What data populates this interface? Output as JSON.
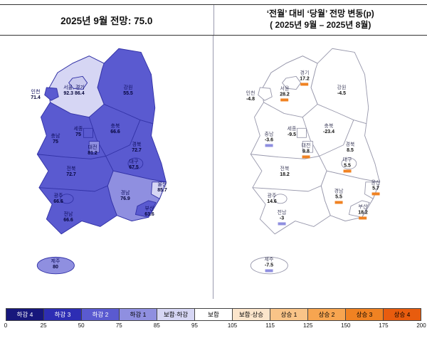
{
  "header": {
    "left_title": "2025년 9월 전망: 75.0",
    "right_title_line1": "‘전월’ 대비 ‘당월’ 전망 변동(p)",
    "right_title_line2": "( 2025년 9월 – 2025년 8월)"
  },
  "left_panel": {
    "fill_colors": {
      "base": "#5a5ad0",
      "gyeonggi": "#d6d6f4",
      "seoul": "#c9c9ee",
      "incheon": "#5a5ad0",
      "sejong": "#5a5ad0",
      "daejeon": "#8f8fe0",
      "daegu": "#5a5ad0",
      "gwangju": "#5a5ad0",
      "gyeongnam": "#8f8fe0",
      "ulsan": "#d6d6f4",
      "busan": "#5a5ad0",
      "jeju": "#8f8fe0"
    },
    "regions": [
      {
        "id": "incheon",
        "name": "인천",
        "value": "71.4"
      },
      {
        "id": "seoul-gyeonggi",
        "name": "서울, 경기",
        "value": "92.3 86.4"
      },
      {
        "id": "gangwon",
        "name": "강원",
        "value": "55.5"
      },
      {
        "id": "sejong",
        "name": "세종",
        "value": "75"
      },
      {
        "id": "chungbuk",
        "name": "충북",
        "value": "66.6"
      },
      {
        "id": "chungnam",
        "name": "충남",
        "value": "75"
      },
      {
        "id": "daejeon",
        "name": "대전",
        "value": "81.2"
      },
      {
        "id": "gyeongbuk",
        "name": "경북",
        "value": "72.7"
      },
      {
        "id": "jeonbuk",
        "name": "전북",
        "value": "72.7"
      },
      {
        "id": "daegu",
        "name": "대구",
        "value": "67.5"
      },
      {
        "id": "ulsan",
        "name": "울산",
        "value": "85.7"
      },
      {
        "id": "gwangju",
        "name": "광주",
        "value": "66.6"
      },
      {
        "id": "jeonnam",
        "name": "전남",
        "value": "66.6"
      },
      {
        "id": "gyeongnam",
        "name": "경남",
        "value": "76.9"
      },
      {
        "id": "busan",
        "name": "부산",
        "value": "63.6"
      },
      {
        "id": "jeju",
        "name": "제주",
        "value": "80"
      }
    ]
  },
  "right_panel": {
    "marker_colors": {
      "up": "#f08222",
      "down": "#8f8fe0"
    },
    "regions": [
      {
        "id": "incheon",
        "name": "인천",
        "value": "-4.8",
        "marker": ""
      },
      {
        "id": "seoul",
        "name": "서울",
        "value": "28.2",
        "marker": "up"
      },
      {
        "id": "gyeonggi",
        "name": "경기",
        "value": "17.2",
        "marker": "up"
      },
      {
        "id": "gangwon",
        "name": "강원",
        "value": "-4.5",
        "marker": ""
      },
      {
        "id": "sejong",
        "name": "세종",
        "value": "-9.5",
        "marker": ""
      },
      {
        "id": "chungbuk",
        "name": "충북",
        "value": "-23.4",
        "marker": ""
      },
      {
        "id": "chungnam",
        "name": "충남",
        "value": "-3.6",
        "marker": "down"
      },
      {
        "id": "daejeon",
        "name": "대전",
        "value": "9.8",
        "marker": "up"
      },
      {
        "id": "gyeongbuk",
        "name": "경북",
        "value": "8.5",
        "marker": ""
      },
      {
        "id": "jeonbuk",
        "name": "전북",
        "value": "18.2",
        "marker": ""
      },
      {
        "id": "daegu",
        "name": "대구",
        "value": "5.5",
        "marker": "up"
      },
      {
        "id": "ulsan",
        "name": "울산",
        "value": "5.7",
        "marker": "up"
      },
      {
        "id": "gwangju",
        "name": "광주",
        "value": "14.6",
        "marker": ""
      },
      {
        "id": "jeonnam",
        "name": "전남",
        "value": "-3",
        "marker": "down"
      },
      {
        "id": "gyeongnam",
        "name": "경남",
        "value": "5.5",
        "marker": "up"
      },
      {
        "id": "busan",
        "name": "부산",
        "value": "18.2",
        "marker": "up"
      },
      {
        "id": "jeju",
        "name": "제주",
        "value": "-7.5",
        "marker": "down"
      }
    ]
  },
  "legend": {
    "segments": [
      {
        "label": "하강 4",
        "color": "#17177c",
        "text": "#ffffff"
      },
      {
        "label": "하강 3",
        "color": "#2d2db4",
        "text": "#ffffff"
      },
      {
        "label": "하강 2",
        "color": "#5a5ad0",
        "text": "#ffffff"
      },
      {
        "label": "하강 1",
        "color": "#8f8fe0",
        "text": "#000000"
      },
      {
        "label": "보합·하강",
        "color": "#d6d6f4",
        "text": "#000000"
      },
      {
        "label": "보합",
        "color": "#ffffff",
        "text": "#000000"
      },
      {
        "label": "보합·상승",
        "color": "#fbe5cb",
        "text": "#000000"
      },
      {
        "label": "상승 1",
        "color": "#f9c488",
        "text": "#000000"
      },
      {
        "label": "상승 2",
        "color": "#f7a550",
        "text": "#000000"
      },
      {
        "label": "상승 3",
        "color": "#f08222",
        "text": "#000000"
      },
      {
        "label": "상승 4",
        "color": "#e85c0e",
        "text": "#000000"
      }
    ],
    "scale": [
      "0",
      "25",
      "50",
      "75",
      "85",
      "95",
      "105",
      "115",
      "125",
      "150",
      "175",
      "200"
    ]
  },
  "chart_data": [
    {
      "type": "heatmap",
      "subtype": "choropleth-korea",
      "title": "2025년 9월 전망: 75.0",
      "categories": [
        "인천",
        "서울",
        "경기",
        "강원",
        "세종",
        "충북",
        "충남",
        "대전",
        "경북",
        "전북",
        "대구",
        "울산",
        "광주",
        "전남",
        "경남",
        "부산",
        "제주"
      ],
      "values": [
        71.4,
        92.3,
        86.4,
        55.5,
        75,
        66.6,
        75,
        81.2,
        72.7,
        72.7,
        67.5,
        85.7,
        66.6,
        66.6,
        76.9,
        63.6,
        80
      ],
      "national_value": 75.0,
      "scale_breaks": [
        0,
        25,
        50,
        75,
        85,
        95,
        105,
        115,
        125,
        150,
        175,
        200
      ],
      "scale_labels": [
        "하강 4",
        "하강 3",
        "하강 2",
        "하강 1",
        "보합·하강",
        "보합",
        "보합·상승",
        "상승 1",
        "상승 2",
        "상승 3",
        "상승 4"
      ],
      "legend_position": "bottom"
    },
    {
      "type": "heatmap",
      "subtype": "choropleth-korea",
      "title": "‘전월’ 대비 ‘당월’ 전망 변동(p) ( 2025년 9월 – 2025년 8월)",
      "categories": [
        "인천",
        "서울",
        "경기",
        "강원",
        "세종",
        "충북",
        "충남",
        "대전",
        "경북",
        "전북",
        "대구",
        "울산",
        "광주",
        "전남",
        "경남",
        "부산",
        "제주"
      ],
      "values": [
        -4.8,
        28.2,
        17.2,
        -4.5,
        -9.5,
        -23.4,
        -3.6,
        9.8,
        8.5,
        18.2,
        5.5,
        5.7,
        14.6,
        -3,
        5.5,
        18.2,
        -7.5
      ]
    }
  ]
}
